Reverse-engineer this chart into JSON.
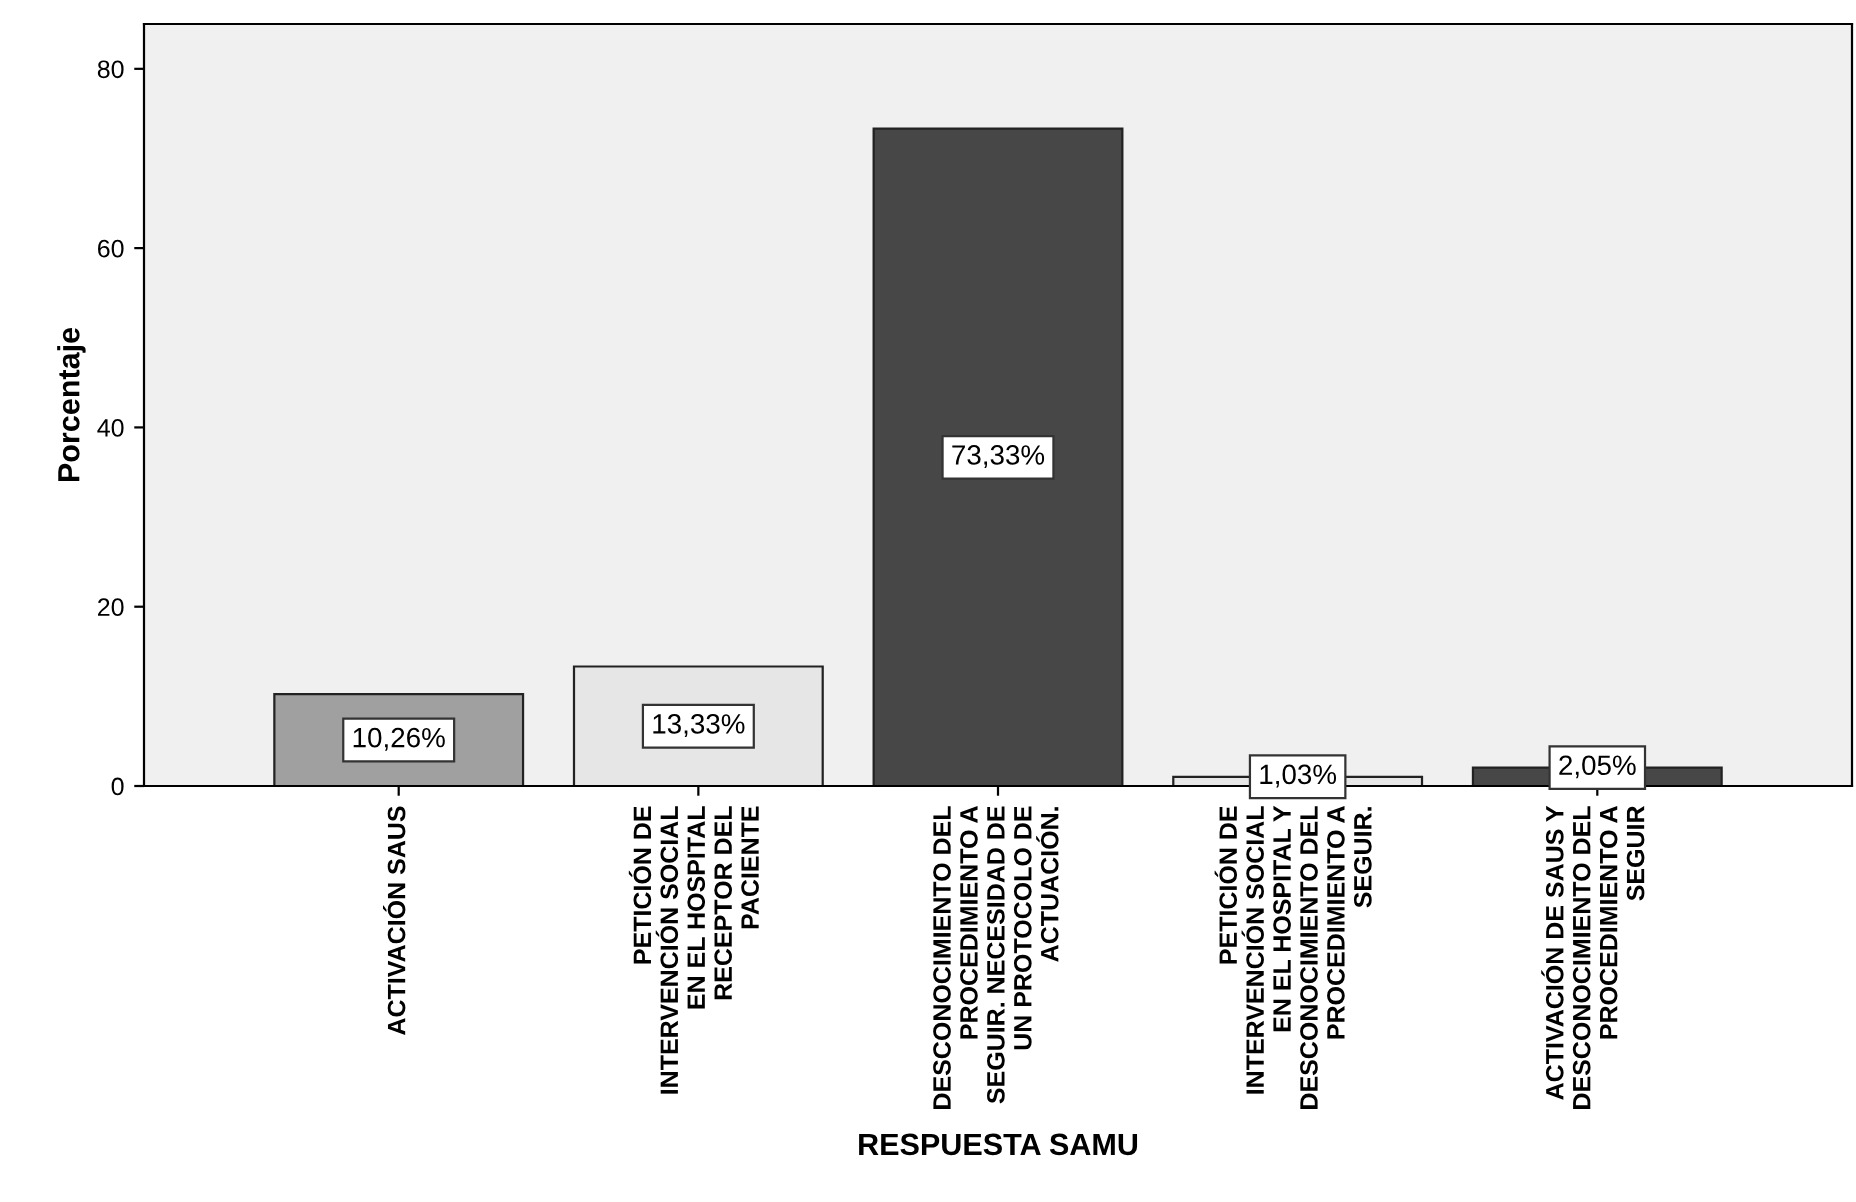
{
  "chart_data": {
    "type": "bar",
    "xlabel": "RESPUESTA SAMU",
    "ylabel": "Porcentaje",
    "categories": [
      "ACTIVACIÓN SAUS",
      "PETICIÓN DE\nINTERVENCIÓN SOCIAL\nEN EL HOSPITAL\nRECEPTOR DEL\nPACIENTE",
      "DESCONOCIMIENTO DEL\nPROCEDIMIENTO A\nSEGUIR. NECESIDAD DE\nUN PROTOCOLO DE\nACTUACIÓN.",
      "PETICIÓN DE\nINTERVENCIÓN SOCIAL\nEN EL HOSPITAL Y\nDESCONOCIMIENTO DEL\nPROCEDIMIENTO A\nSEGUIR.",
      "ACTIVACIÓN DE SAUS Y\nDESCONOCIMIENTO DEL\nPROCEDIMIENTO A\nSEGUIR"
    ],
    "values": [
      10.26,
      13.33,
      73.33,
      1.03,
      2.05
    ],
    "colors": [
      "#a0a0a0",
      "#e6e6e6",
      "#474747",
      "#e6e6e6",
      "#474747"
    ],
    "value_labels": [
      "10,26%",
      "13,33%",
      "73,33%",
      "1,03%",
      "2,05%"
    ],
    "ylim": [
      0,
      85
    ],
    "yticks": [
      0,
      20,
      40,
      60,
      80
    ],
    "grid": false,
    "legend": false
  }
}
